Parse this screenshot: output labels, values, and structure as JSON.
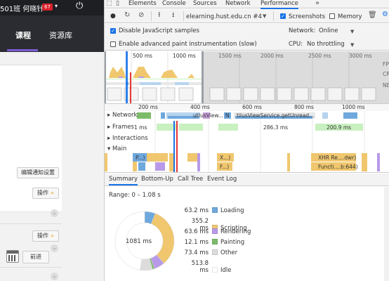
{
  "left_page": {
    "topbar": {
      "user_text": "501班 何晓针",
      "badge": "67",
      "caret": "▾",
      "power": "⏻"
    },
    "nav_tabs": [
      "课程",
      "资源库"
    ],
    "buttons": {
      "edit_notice": "编辑通知设置",
      "action1": "操作",
      "action2": "操作",
      "forward": "前进"
    }
  },
  "devtools": {
    "tabs": [
      "Elements",
      "Console",
      "Sources",
      "Network",
      "Performance"
    ],
    "more": "»",
    "toolbar": {
      "target": "elearning.hust.edu.cn #4",
      "screenshots": "Screenshots",
      "memory": "Memory"
    },
    "settings": {
      "disable_js": "Disable JavaScript samples",
      "advanced_paint": "Enable advanced paint instrumentation (slow)",
      "network_label": "Network:",
      "network_value": "Online",
      "cpu_label": "CPU:",
      "cpu_value": "No throttling"
    },
    "overview": {
      "ticks": [
        "500 ms",
        "1000 ms",
        "1500 ms",
        "2000 ms",
        "2500 ms",
        "3000 ms"
      ],
      "side_labels": [
        "FP",
        "CP",
        "NE"
      ]
    },
    "flame": {
      "ticks": [
        "200 ms",
        "400 ms",
        "600 ms",
        "800 ms",
        "1000 ms"
      ],
      "tracks": {
        "network": "Network",
        "frames": "Frames",
        "interactions": "Interactions",
        "main": "Main"
      },
      "labels": {
        "net1": "ut",
        "net2": "lusView...",
        "net3": "N",
        "net4": "tilusViewService.getUnread...",
        "frame1": "1 ms",
        "frame2": "286.3 ms",
        "frame3": "200.9 ms",
        "main1": "P...)",
        "main2": "X...)",
        "main3": "F...)",
        "main4": "XHR Re....dwr)",
        "main5": "Functi....b:644)"
      }
    },
    "bottom_tabs": [
      "Summary",
      "Bottom-Up",
      "Call Tree",
      "Event Log"
    ],
    "summary": {
      "range": "Range: 0 – 1.08 s",
      "total": "1081 ms",
      "rows": [
        {
          "ms": "63.2 ms",
          "name": "Loading",
          "color": "#6fa8dc"
        },
        {
          "ms": "355.2 ms",
          "name": "Scripting",
          "color": "#f0c76e"
        },
        {
          "ms": "63.6 ms",
          "name": "Rendering",
          "color": "#b99ae8"
        },
        {
          "ms": "12.1 ms",
          "name": "Painting",
          "color": "#7cbb6a"
        },
        {
          "ms": "73.4 ms",
          "name": "Other",
          "color": "#dcdcdc"
        },
        {
          "ms": "513.8 ms",
          "name": "Idle",
          "color": "#ffffff"
        }
      ]
    }
  },
  "colors": {
    "accent": "#1a73e8",
    "scripting": "#f0c76e",
    "loading": "#6fa8dc",
    "rendering": "#b99ae8",
    "painting": "#7cbb6a",
    "frame_green": "#c9f0c0",
    "nav_underline": "#7b5cd0",
    "badge_red": "#d9202b"
  }
}
